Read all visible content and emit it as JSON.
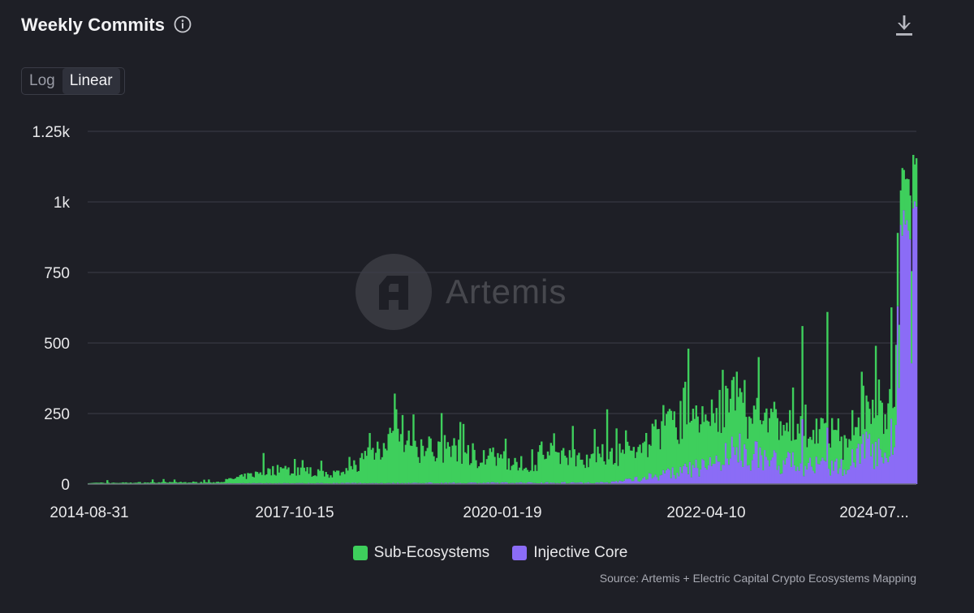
{
  "header": {
    "title": "Weekly Commits",
    "info_icon": "info-icon",
    "download_icon": "download-icon"
  },
  "scale_toggle": {
    "options": [
      "Log",
      "Linear"
    ],
    "selected": "Linear"
  },
  "watermark": {
    "text": "Artemis",
    "logo_icon": "artemis-logo-icon"
  },
  "source": "Source: Artemis + Electric Capital Crypto Ecosystems Mapping",
  "colors": {
    "background": "#1e1f26",
    "grid": "#3c3e48",
    "sub_ecosystems": "#3ecf5c",
    "injective_core": "#8b6cf6"
  },
  "chart_data": {
    "type": "bar",
    "stacked": true,
    "ylim": [
      0,
      1250
    ],
    "y_ticks": [
      0,
      250,
      500,
      750,
      1000,
      1250
    ],
    "y_tick_labels": [
      "0",
      "250",
      "500",
      "750",
      "1k",
      "1.25k"
    ],
    "x_tick_labels": [
      "2014-08-31",
      "2017-10-15",
      "2020-01-19",
      "2022-04-10",
      "2024-07..."
    ],
    "x_range": [
      "2014-08-31",
      "2024-10-31"
    ],
    "grid": true,
    "legend_position": "bottom-center",
    "series_names": [
      "Sub-Ecosystems",
      "Injective Core"
    ],
    "anchors": {
      "Sub-Ecosystems": [
        [
          "2014-08-31",
          3
        ],
        [
          "2016-04-01",
          5
        ],
        [
          "2016-09-01",
          30
        ],
        [
          "2017-01-01",
          50
        ],
        [
          "2017-06-01",
          40
        ],
        [
          "2017-10-15",
          30
        ],
        [
          "2018-01-01",
          80
        ],
        [
          "2018-05-01",
          160
        ],
        [
          "2018-09-01",
          120
        ],
        [
          "2019-01-01",
          120
        ],
        [
          "2019-06-01",
          100
        ],
        [
          "2019-10-01",
          80
        ],
        [
          "2020-01-19",
          60
        ],
        [
          "2020-06-01",
          110
        ],
        [
          "2020-10-01",
          90
        ],
        [
          "2021-03-01",
          100
        ],
        [
          "2021-06-01",
          100
        ],
        [
          "2021-10-01",
          170
        ],
        [
          "2022-01-01",
          210
        ],
        [
          "2022-04-10",
          170
        ],
        [
          "2022-08-01",
          190
        ],
        [
          "2022-12-01",
          150
        ],
        [
          "2023-06-01",
          120
        ],
        [
          "2023-12-01",
          100
        ],
        [
          "2024-03-01",
          140
        ],
        [
          "2024-06-01",
          150
        ],
        [
          "2024-07-20",
          200
        ],
        [
          "2024-08-01",
          330
        ],
        [
          "2024-08-15",
          200
        ],
        [
          "2024-09-15",
          180
        ],
        [
          "2024-10-31",
          150
        ]
      ],
      "Injective Core": [
        [
          "2014-08-31",
          1
        ],
        [
          "2020-06-01",
          5
        ],
        [
          "2021-01-01",
          5
        ],
        [
          "2021-06-01",
          20
        ],
        [
          "2022-01-01",
          50
        ],
        [
          "2022-04-10",
          70
        ],
        [
          "2022-09-01",
          130
        ],
        [
          "2023-01-01",
          90
        ],
        [
          "2023-06-01",
          70
        ],
        [
          "2023-12-01",
          60
        ],
        [
          "2024-03-01",
          150
        ],
        [
          "2024-06-01",
          100
        ],
        [
          "2024-07-25",
          200
        ],
        [
          "2024-08-08",
          800
        ],
        [
          "2024-08-22",
          880
        ],
        [
          "2024-09-15",
          780
        ],
        [
          "2024-10-31",
          650
        ]
      ]
    },
    "peaks": [
      [
        "2016-10-23",
        110,
        0
      ],
      [
        "2018-06-10",
        265,
        0
      ],
      [
        "2019-03-24",
        220,
        0
      ],
      [
        "2020-05-17",
        180,
        0
      ],
      [
        "2021-01-10",
        265,
        0
      ],
      [
        "2022-01-09",
        480,
        0
      ],
      [
        "2022-11-20",
        450,
        0
      ],
      [
        "2023-06-04",
        560,
        230
      ],
      [
        "2023-09-24",
        610,
        200
      ],
      [
        "2024-04-28",
        490,
        150
      ],
      [
        "2024-08-25",
        1120,
        880
      ],
      [
        "2024-09-08",
        1080,
        920
      ]
    ]
  }
}
